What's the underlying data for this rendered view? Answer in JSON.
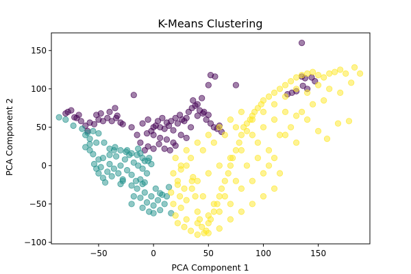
{
  "chart_data": {
    "type": "scatter",
    "title": "K-Means Clustering",
    "xlabel": "PCA Component 1",
    "ylabel": "PCA Component 2",
    "xlim": [
      -93,
      197
    ],
    "ylim": [
      -102,
      173
    ],
    "xticks": [
      -50,
      0,
      50,
      100,
      150
    ],
    "xtick_labels": [
      "−50",
      "0",
      "50",
      "100",
      "150"
    ],
    "yticks": [
      -100,
      -50,
      0,
      50,
      100,
      150
    ],
    "ytick_labels": [
      "−100",
      "−50",
      "0",
      "50",
      "100",
      "150"
    ],
    "grid": false,
    "legend": "none",
    "marker_opacity": 0.5,
    "series": [
      {
        "color": "#440154",
        "points": [
          [
            -78,
            70
          ],
          [
            -72,
            63
          ],
          [
            -66,
            58
          ],
          [
            -62,
            52
          ],
          [
            -58,
            56
          ],
          [
            -54,
            54
          ],
          [
            -50,
            60
          ],
          [
            -46,
            58
          ],
          [
            -42,
            62
          ],
          [
            -38,
            58
          ],
          [
            -34,
            62
          ],
          [
            -30,
            56
          ],
          [
            -52,
            66
          ],
          [
            -48,
            68
          ],
          [
            -40,
            70
          ],
          [
            -35,
            75
          ],
          [
            -33,
            65
          ],
          [
            -28,
            54
          ],
          [
            -20,
            50
          ],
          [
            -15,
            40
          ],
          [
            -12,
            30
          ],
          [
            -8,
            20
          ],
          [
            -5,
            25
          ],
          [
            0,
            22
          ],
          [
            5,
            28
          ],
          [
            10,
            22
          ],
          [
            15,
            20
          ],
          [
            20,
            26
          ],
          [
            -2,
            45
          ],
          [
            2,
            52
          ],
          [
            6,
            50
          ],
          [
            10,
            48
          ],
          [
            14,
            52
          ],
          [
            18,
            46
          ],
          [
            22,
            55
          ],
          [
            26,
            60
          ],
          [
            30,
            62
          ],
          [
            32,
            70
          ],
          [
            35,
            75
          ],
          [
            38,
            78
          ],
          [
            40,
            80
          ],
          [
            42,
            72
          ],
          [
            45,
            68
          ],
          [
            48,
            60
          ],
          [
            50,
            66
          ],
          [
            52,
            55
          ],
          [
            55,
            50
          ],
          [
            58,
            48
          ],
          [
            60,
            52
          ],
          [
            62,
            44
          ],
          [
            50,
            105
          ],
          [
            52,
            118
          ],
          [
            56,
            116
          ],
          [
            75,
            105
          ],
          [
            -18,
            92
          ],
          [
            -10,
            55
          ],
          [
            -5,
            60
          ],
          [
            0,
            50
          ],
          [
            4,
            58
          ],
          [
            8,
            62
          ],
          [
            12,
            56
          ],
          [
            16,
            58
          ],
          [
            20,
            62
          ],
          [
            24,
            66
          ],
          [
            28,
            58
          ],
          [
            36,
            85
          ],
          [
            44,
            88
          ],
          [
            40,
            65
          ],
          [
            46,
            70
          ],
          [
            34,
            50
          ],
          [
            30,
            36
          ],
          [
            25,
            40
          ],
          [
            18,
            30
          ],
          [
            12,
            34
          ],
          [
            6,
            36
          ],
          [
            0,
            40
          ],
          [
            -6,
            42
          ],
          [
            130,
            97
          ],
          [
            136,
            104
          ],
          [
            140,
            100
          ],
          [
            135,
            116
          ],
          [
            138,
            114
          ],
          [
            144,
            115
          ],
          [
            147,
            110
          ],
          [
            135,
            160
          ],
          [
            122,
            93
          ],
          [
            126,
            95
          ],
          [
            -60,
            45
          ],
          [
            -70,
            62
          ],
          [
            -80,
            68
          ],
          [
            -75,
            72
          ],
          [
            -68,
            66
          ]
        ]
      },
      {
        "color": "#21918c",
        "points": [
          [
            -86,
            63
          ],
          [
            -80,
            60
          ],
          [
            -73,
            52
          ],
          [
            -65,
            48
          ],
          [
            -62,
            40
          ],
          [
            -58,
            35
          ],
          [
            -60,
            43
          ],
          [
            -55,
            45
          ],
          [
            -50,
            42
          ],
          [
            -58,
            28
          ],
          [
            -52,
            30
          ],
          [
            -45,
            30
          ],
          [
            -40,
            22
          ],
          [
            -35,
            24
          ],
          [
            -30,
            20
          ],
          [
            -25,
            18
          ],
          [
            -20,
            16
          ],
          [
            -15,
            14
          ],
          [
            -10,
            10
          ],
          [
            -5,
            6
          ],
          [
            -55,
            15
          ],
          [
            -50,
            8
          ],
          [
            -48,
            -2
          ],
          [
            -46,
            10
          ],
          [
            -42,
            -8
          ],
          [
            -40,
            2
          ],
          [
            -38,
            -14
          ],
          [
            -36,
            -4
          ],
          [
            -34,
            12
          ],
          [
            -32,
            -10
          ],
          [
            -30,
            0
          ],
          [
            -28,
            -18
          ],
          [
            -26,
            8
          ],
          [
            -24,
            -6
          ],
          [
            -22,
            14
          ],
          [
            -20,
            -12
          ],
          [
            -18,
            4
          ],
          [
            -16,
            -20
          ],
          [
            -14,
            0
          ],
          [
            -12,
            16
          ],
          [
            -10,
            -4
          ],
          [
            -8,
            6
          ],
          [
            -6,
            -10
          ],
          [
            -4,
            10
          ],
          [
            -2,
            2
          ],
          [
            -44,
            -22
          ],
          [
            -30,
            -24
          ],
          [
            -20,
            -26
          ],
          [
            -10,
            -24
          ],
          [
            -40,
            14
          ],
          [
            -36,
            20
          ],
          [
            -14,
            22
          ],
          [
            -24,
            20
          ],
          [
            -50,
            -10
          ],
          [
            -52,
            -4
          ],
          [
            -54,
            2
          ],
          [
            -20,
            -50
          ],
          [
            -18,
            -40
          ],
          [
            -15,
            -30
          ],
          [
            -12,
            -42
          ],
          [
            -10,
            -55
          ],
          [
            -8,
            -35
          ],
          [
            -6,
            -48
          ],
          [
            -4,
            -60
          ],
          [
            -2,
            -40
          ],
          [
            0,
            -52
          ],
          [
            2,
            -30
          ],
          [
            4,
            -45
          ],
          [
            6,
            -58
          ],
          [
            8,
            -38
          ],
          [
            10,
            -50
          ],
          [
            12,
            -40
          ],
          [
            14,
            -28
          ],
          [
            16,
            -62
          ],
          [
            0,
            -62
          ],
          [
            6,
            -36
          ],
          [
            -28,
            -20
          ],
          [
            -46,
            -16
          ],
          [
            -58,
            20
          ],
          [
            -62,
            24
          ],
          [
            -12,
            -18
          ],
          [
            -8,
            -22
          ]
        ]
      },
      {
        "color": "#fde725",
        "points": [
          [
            18,
            -10
          ],
          [
            22,
            -20
          ],
          [
            25,
            -5
          ],
          [
            28,
            -30
          ],
          [
            30,
            0
          ],
          [
            34,
            10
          ],
          [
            36,
            -15
          ],
          [
            38,
            -40
          ],
          [
            40,
            -60
          ],
          [
            42,
            -70
          ],
          [
            44,
            -80
          ],
          [
            46,
            -88
          ],
          [
            48,
            -85
          ],
          [
            50,
            -75
          ],
          [
            52,
            -70
          ],
          [
            55,
            -60
          ],
          [
            58,
            -50
          ],
          [
            60,
            -40
          ],
          [
            62,
            -30
          ],
          [
            65,
            -20
          ],
          [
            68,
            -10
          ],
          [
            70,
            0
          ],
          [
            72,
            10
          ],
          [
            75,
            20
          ],
          [
            78,
            30
          ],
          [
            80,
            40
          ],
          [
            82,
            50
          ],
          [
            85,
            55
          ],
          [
            88,
            60
          ],
          [
            90,
            65
          ],
          [
            92,
            70
          ],
          [
            95,
            75
          ],
          [
            98,
            80
          ],
          [
            100,
            85
          ],
          [
            105,
            90
          ],
          [
            110,
            95
          ],
          [
            115,
            100
          ],
          [
            120,
            105
          ],
          [
            125,
            110
          ],
          [
            130,
            115
          ],
          [
            135,
            118
          ],
          [
            140,
            120
          ],
          [
            145,
            122
          ],
          [
            150,
            118
          ],
          [
            155,
            115
          ],
          [
            160,
            120
          ],
          [
            165,
            122
          ],
          [
            170,
            125
          ],
          [
            175,
            120
          ],
          [
            180,
            108
          ],
          [
            183,
            128
          ],
          [
            188,
            120
          ],
          [
            178,
            58
          ],
          [
            168,
            55
          ],
          [
            150,
            45
          ],
          [
            158,
            35
          ],
          [
            140,
            60
          ],
          [
            130,
            65
          ],
          [
            120,
            70
          ],
          [
            110,
            60
          ],
          [
            100,
            50
          ],
          [
            90,
            40
          ],
          [
            80,
            20
          ],
          [
            70,
            10
          ],
          [
            60,
            0
          ],
          [
            50,
            -10
          ],
          [
            40,
            -20
          ],
          [
            35,
            -30
          ],
          [
            30,
            -45
          ],
          [
            25,
            -55
          ],
          [
            20,
            -65
          ],
          [
            22,
            -75
          ],
          [
            28,
            -80
          ],
          [
            34,
            -85
          ],
          [
            40,
            -90
          ],
          [
            50,
            -88
          ],
          [
            60,
            -82
          ],
          [
            70,
            -70
          ],
          [
            80,
            -60
          ],
          [
            90,
            -50
          ],
          [
            100,
            -40
          ],
          [
            110,
            -30
          ],
          [
            115,
            -10
          ],
          [
            105,
            0
          ],
          [
            95,
            10
          ],
          [
            85,
            0
          ],
          [
            75,
            -20
          ],
          [
            65,
            -40
          ],
          [
            55,
            -50
          ],
          [
            45,
            -40
          ],
          [
            35,
            -20
          ],
          [
            25,
            0
          ],
          [
            20,
            10
          ],
          [
            30,
            20
          ],
          [
            40,
            30
          ],
          [
            50,
            40
          ],
          [
            60,
            50
          ],
          [
            70,
            60
          ],
          [
            80,
            70
          ],
          [
            90,
            60
          ],
          [
            100,
            70
          ],
          [
            110,
            80
          ],
          [
            120,
            90
          ],
          [
            130,
            100
          ],
          [
            140,
            95
          ],
          [
            150,
            105
          ],
          [
            160,
            100
          ],
          [
            170,
            95
          ],
          [
            45,
            20
          ],
          [
            55,
            30
          ],
          [
            65,
            40
          ],
          [
            75,
            50
          ],
          [
            85,
            45
          ],
          [
            95,
            30
          ],
          [
            105,
            20
          ],
          [
            115,
            40
          ],
          [
            125,
            50
          ],
          [
            135,
            70
          ],
          [
            145,
            80
          ],
          [
            155,
            85
          ],
          [
            120,
            40
          ],
          [
            130,
            30
          ],
          [
            110,
            10
          ],
          [
            100,
            -10
          ],
          [
            90,
            -20
          ],
          [
            80,
            -30
          ],
          [
            70,
            -50
          ],
          [
            60,
            -60
          ],
          [
            50,
            -65
          ],
          [
            40,
            -75
          ],
          [
            30,
            -70
          ],
          [
            24,
            -40
          ],
          [
            22,
            -25
          ],
          [
            18,
            -50
          ],
          [
            16,
            -35
          ]
        ]
      }
    ]
  }
}
